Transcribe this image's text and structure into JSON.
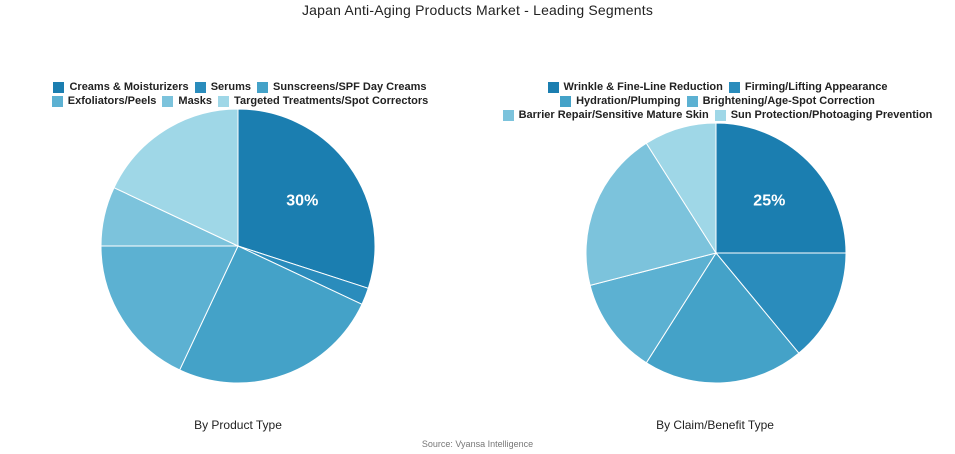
{
  "title": "Japan Anti-Aging Products Market - Leading Segments",
  "source": "Source: Vyansa Intelligence",
  "chart_data": [
    {
      "type": "pie",
      "subtitle": "By Product Type",
      "slices": [
        {
          "name": "Creams & Moisturizers",
          "value": 30,
          "color": "#1b7eb0",
          "label": "30%"
        },
        {
          "name": "Serums",
          "value": 2,
          "color": "#2a8cbc",
          "label": ""
        },
        {
          "name": "Sunscreens/SPF Day Creams",
          "value": 25,
          "color": "#44a2c8",
          "label": ""
        },
        {
          "name": "Exfoliators/Peels",
          "value": 18,
          "color": "#5cb1d2",
          "label": ""
        },
        {
          "name": "Masks",
          "value": 7,
          "color": "#7cc3dc",
          "label": ""
        },
        {
          "name": "Targeted Treatments/Spot Correctors",
          "value": 18,
          "color": "#9fd7e7",
          "label": ""
        }
      ]
    },
    {
      "type": "pie",
      "subtitle": "By Claim/Benefit Type",
      "slices": [
        {
          "name": "Wrinkle & Fine-Line Reduction",
          "value": 25,
          "color": "#1b7eb0",
          "label": "25%"
        },
        {
          "name": "Firming/Lifting Appearance",
          "value": 14,
          "color": "#2a8cbc",
          "label": ""
        },
        {
          "name": "Hydration/Plumping",
          "value": 20,
          "color": "#44a2c8",
          "label": ""
        },
        {
          "name": "Brightening/Age-Spot Correction",
          "value": 12,
          "color": "#5cb1d2",
          "label": ""
        },
        {
          "name": "Barrier Repair/Sensitive Mature Skin",
          "value": 20,
          "color": "#7cc3dc",
          "label": ""
        },
        {
          "name": "Sun Protection/Photoaging Prevention",
          "value": 9,
          "color": "#9fd7e7",
          "label": ""
        }
      ]
    }
  ]
}
